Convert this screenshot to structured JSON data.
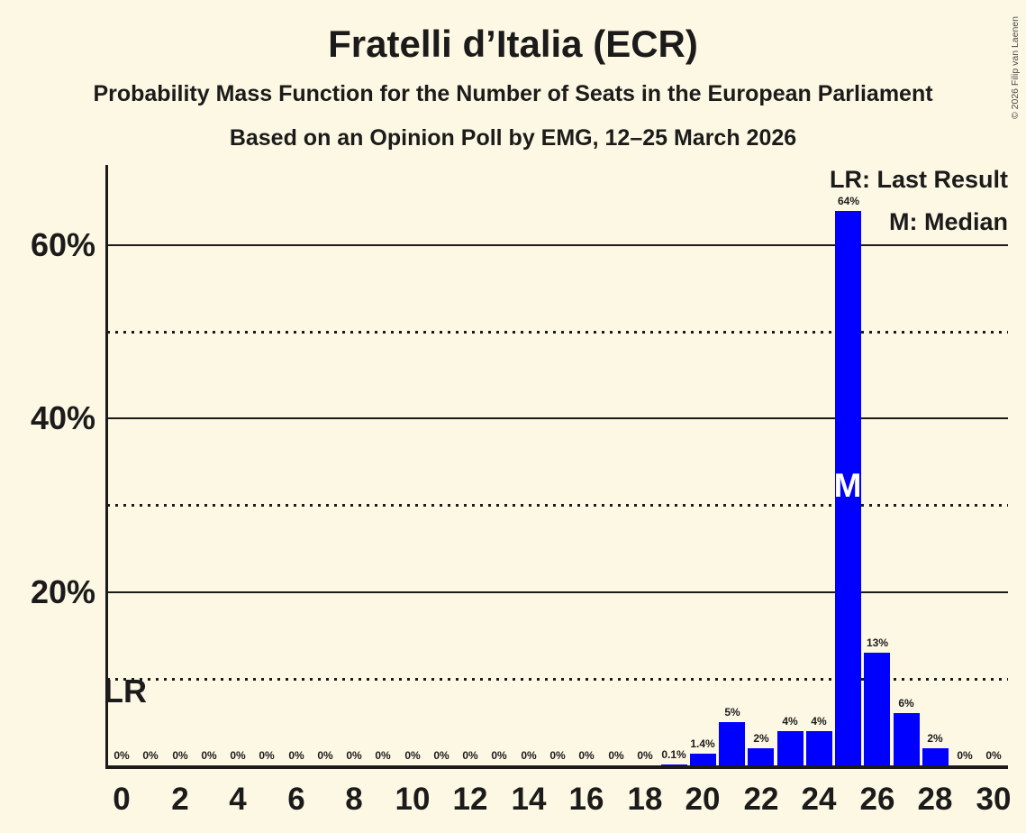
{
  "title": "Fratelli d’Italia (ECR)",
  "subtitle": "Probability Mass Function for the Number of Seats in the European Parliament",
  "poll_info": "Based on an Opinion Poll by EMG, 12–25 March 2026",
  "copyright": "© 2026 Filip van Laenen",
  "legend": {
    "lr_label": "LR: Last Result",
    "m_label": "M: Median"
  },
  "annotations": {
    "last_result_text": "LR",
    "median_text": "M",
    "median_seat": 25
  },
  "colors": {
    "background": "#FDF8E3",
    "bar": "#0000FF",
    "text": "#1B1B1B",
    "median_text": "#FFFFFF"
  },
  "chart_data": {
    "type": "bar",
    "title": "Fratelli d’Italia (ECR)",
    "categories": [
      0,
      1,
      2,
      3,
      4,
      5,
      6,
      7,
      8,
      9,
      10,
      11,
      12,
      13,
      14,
      15,
      16,
      17,
      18,
      19,
      20,
      21,
      22,
      23,
      24,
      25,
      26,
      27,
      28,
      29,
      30
    ],
    "values": [
      0,
      0,
      0,
      0,
      0,
      0,
      0,
      0,
      0,
      0,
      0,
      0,
      0,
      0,
      0,
      0,
      0,
      0,
      0,
      0.1,
      1.4,
      5,
      2,
      4,
      4,
      64,
      13,
      6,
      2,
      0,
      0
    ],
    "bar_labels": [
      "0%",
      "0%",
      "0%",
      "0%",
      "0%",
      "0%",
      "0%",
      "0%",
      "0%",
      "0%",
      "0%",
      "0%",
      "0%",
      "0%",
      "0%",
      "0%",
      "0%",
      "0%",
      "0%",
      "0.1%",
      "1.4%",
      "5%",
      "2%",
      "4%",
      "4%",
      "64%",
      "13%",
      "6%",
      "2%",
      "0%",
      "0%"
    ],
    "x_tick_labels": [
      0,
      2,
      4,
      6,
      8,
      10,
      12,
      14,
      16,
      18,
      20,
      22,
      24,
      26,
      28,
      30
    ],
    "y_ticks_solid": [
      20,
      40,
      60
    ],
    "y_ticks_dotted": [
      10,
      30,
      50
    ],
    "y_tick_suffix": "%",
    "ylim": [
      0,
      69
    ],
    "grid": "horizontal",
    "legend_position": "top-right",
    "xlabel": "",
    "ylabel": ""
  }
}
